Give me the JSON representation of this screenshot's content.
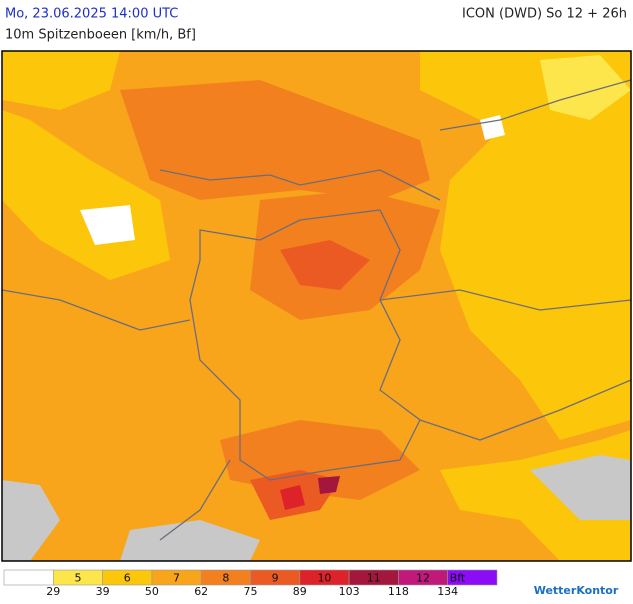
{
  "header": {
    "datetime": "Mo, 23.06.2025 14:00 UTC",
    "model": "ICON (DWD) So 12 + 26h",
    "subtitle": "10m Spitzenboeen [km/h, Bf]"
  },
  "legend": {
    "items": [
      {
        "label": null,
        "color": "#ffffff"
      },
      {
        "label": 5,
        "color": "#fde64c"
      },
      {
        "label": 6,
        "color": "#fcc60a"
      },
      {
        "label": 7,
        "color": "#f8a51c"
      },
      {
        "label": 8,
        "color": "#f2801f"
      },
      {
        "label": 9,
        "color": "#ec5a24"
      },
      {
        "label": 10,
        "color": "#dd2329"
      },
      {
        "label": 11,
        "color": "#a3173c"
      },
      {
        "label": 12,
        "color": "#c0197b"
      },
      {
        "label": "Bft",
        "color": "#8b0cf5"
      }
    ],
    "thresholds": [
      29,
      39,
      50,
      62,
      75,
      89,
      103,
      118,
      134
    ]
  },
  "logo": "WetterKontor"
}
